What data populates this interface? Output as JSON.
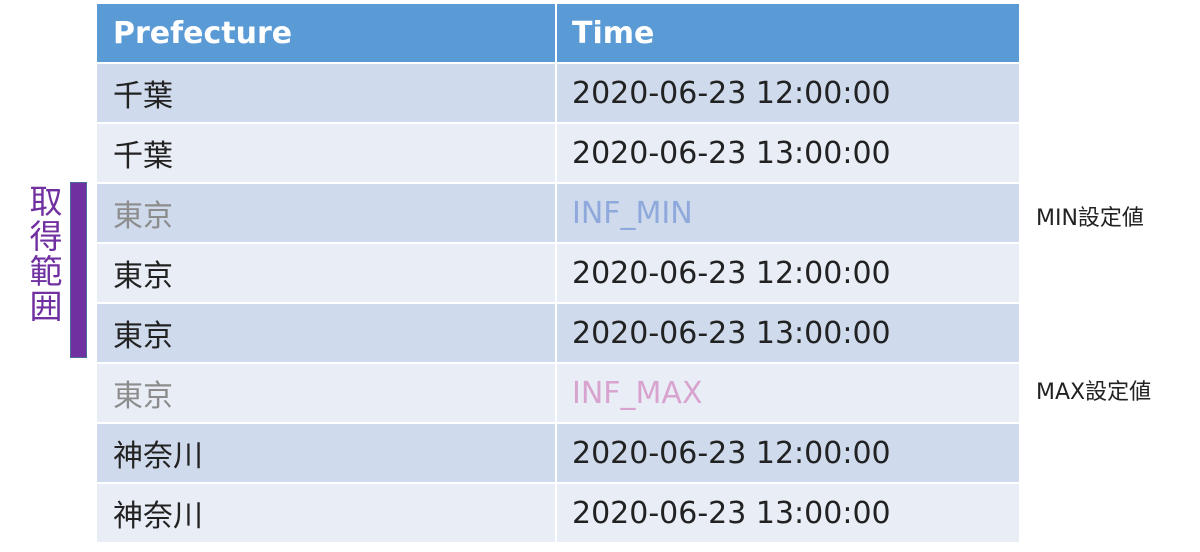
{
  "table": {
    "headers": {
      "prefecture": "Prefecture",
      "time": "Time"
    },
    "rows": [
      {
        "prefecture": "千葉",
        "time": "2020-06-23 12:00:00"
      },
      {
        "prefecture": "千葉",
        "time": "2020-06-23 13:00:00"
      },
      {
        "prefecture": "東京",
        "time": "INF_MIN"
      },
      {
        "prefecture": "東京",
        "time": "2020-06-23 12:00:00"
      },
      {
        "prefecture": "東京",
        "time": "2020-06-23 13:00:00"
      },
      {
        "prefecture": "東京",
        "time": "INF_MAX"
      },
      {
        "prefecture": "神奈川",
        "time": "2020-06-23 12:00:00"
      },
      {
        "prefecture": "神奈川",
        "time": "2020-06-23 13:00:00"
      }
    ]
  },
  "range_label": {
    "chars": [
      "取",
      "得",
      "範",
      "囲"
    ]
  },
  "notes": {
    "min": "MIN設定値",
    "max": "MAX設定値"
  },
  "colors": {
    "header_bg": "#5b9bd5",
    "row_odd": "#cfdbec",
    "row_even": "#e9eef6",
    "range_bar": "#7030a0",
    "inf_min_text": "#8fa9dc",
    "inf_max_text": "#d9a3cf"
  }
}
